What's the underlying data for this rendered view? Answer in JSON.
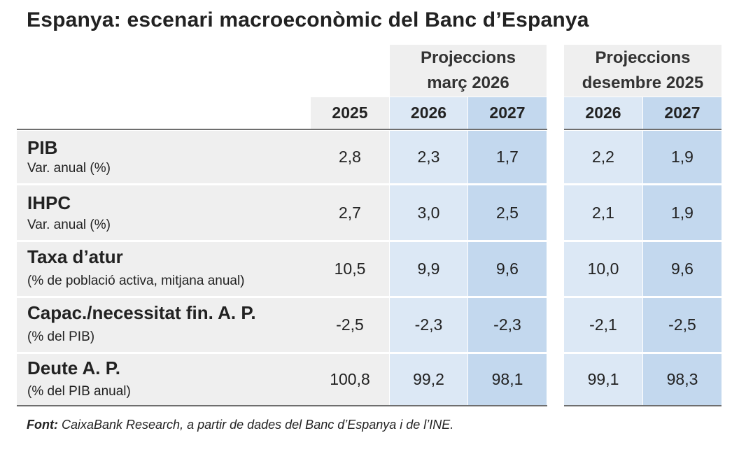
{
  "title": "Espanya: escenari macroeconòmic del Banc d’Espanya",
  "groups": [
    {
      "line1": "Projeccions",
      "line2": "març 2026"
    },
    {
      "line1": "Projeccions",
      "line2": "desembre 2025"
    }
  ],
  "years": [
    "2025",
    "2026",
    "2027",
    "2026",
    "2027"
  ],
  "rows": [
    {
      "label": "PIB",
      "sub": "Var. anual (%)",
      "values": [
        "2,8",
        "2,3",
        "1,7",
        "2,2",
        "1,9"
      ]
    },
    {
      "label": "IHPC",
      "sub": "Var. anual (%)",
      "values": [
        "2,7",
        "3,0",
        "2,5",
        "2,1",
        "1,9"
      ]
    },
    {
      "label": "Taxa d’atur",
      "sub": "(% de població activa, mitjana anual)",
      "values": [
        "10,5",
        "9,9",
        "9,6",
        "10,0",
        "9,6"
      ]
    },
    {
      "label": "Capac./necessitat fin. A. P.",
      "sub": "(% del PIB)",
      "values": [
        "-2,5",
        "-2,3",
        "-2,3",
        "-2,1",
        "-2,5"
      ]
    },
    {
      "label": "Deute A. P.",
      "sub": "(% del PIB anual)",
      "values": [
        "100,8",
        "99,2",
        "98,1",
        "99,1",
        "98,3"
      ]
    }
  ],
  "source": {
    "prefix": "Font:",
    "text": " CaixaBank Research, a partir de dades del Banc d’Espanya i de l’INE."
  }
}
